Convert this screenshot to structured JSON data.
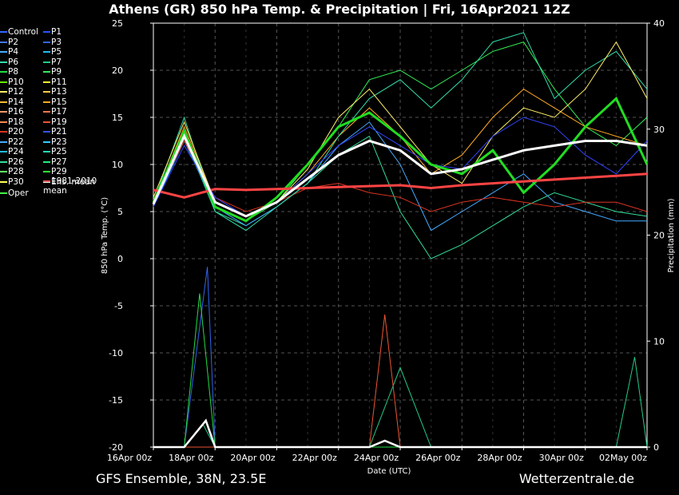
{
  "header": {
    "title": "Athens  (GR)  850 hPa Temp. & Precipitation | Fri, 16Apr2021 12Z"
  },
  "footer": {
    "left": "GFS Ensemble, 38N, 23.5E",
    "right": "Wetterzentrale.de"
  },
  "chart_data": {
    "type": "line",
    "ylabel": "850 hPa Temp. (°C)",
    "y2label": "Precipitation (mm)",
    "xlabel": "Date (UTC)",
    "ylim": [
      -20,
      25
    ],
    "y2lim": [
      0,
      40
    ],
    "yticks": [
      "25",
      "20",
      "15",
      "10",
      "5",
      "0",
      "-5",
      "-10",
      "-15",
      "-20"
    ],
    "y2ticks": [
      "40",
      "30",
      "20",
      "10",
      "0"
    ],
    "xticks": [
      "16Apr 00z",
      "18Apr 00z",
      "20Apr 00z",
      "22Apr 00z",
      "24Apr 00z",
      "26Apr 00z",
      "28Apr 00z",
      "30Apr 00z",
      "02May 00z"
    ],
    "grid": true,
    "legend": {
      "placement": "left",
      "entries": [
        {
          "name": "Control",
          "color": "#3366ff"
        },
        {
          "name": "P1",
          "color": "#2255ff"
        },
        {
          "name": "P2",
          "color": "#4477ff"
        },
        {
          "name": "P3",
          "color": "#3366ee"
        },
        {
          "name": "P4",
          "color": "#44aaff"
        },
        {
          "name": "P5",
          "color": "#22bbee"
        },
        {
          "name": "P6",
          "color": "#33ddaa"
        },
        {
          "name": "P7",
          "color": "#22cc88"
        },
        {
          "name": "P8",
          "color": "#22dd44"
        },
        {
          "name": "P9",
          "color": "#33ee55"
        },
        {
          "name": "P10",
          "color": "#66ee00"
        },
        {
          "name": "P11",
          "color": "#ffff33"
        },
        {
          "name": "P12",
          "color": "#ffee66"
        },
        {
          "name": "P13",
          "color": "#ffcc44"
        },
        {
          "name": "P14",
          "color": "#ffbb33"
        },
        {
          "name": "P15",
          "color": "#ffaa22"
        },
        {
          "name": "P16",
          "color": "#ff9966"
        },
        {
          "name": "P17",
          "color": "#ff7744"
        },
        {
          "name": "P18",
          "color": "#ff8855"
        },
        {
          "name": "P19",
          "color": "#ee5533"
        },
        {
          "name": "P20",
          "color": "#dd3322"
        },
        {
          "name": "P21",
          "color": "#3355ee"
        },
        {
          "name": "P22",
          "color": "#44aaff"
        },
        {
          "name": "P23",
          "color": "#33ccff"
        },
        {
          "name": "P24",
          "color": "#22bbdd"
        },
        {
          "name": "P25",
          "color": "#22ddbb"
        },
        {
          "name": "P26",
          "color": "#33dd99"
        },
        {
          "name": "P27",
          "color": "#22ee77"
        },
        {
          "name": "P28",
          "color": "#66ff66"
        },
        {
          "name": "P29",
          "color": "#33ff33"
        },
        {
          "name": "P30",
          "color": "#ffff55"
        },
        {
          "name": "Ens. mean",
          "color": "#ffffff"
        },
        {
          "name": "Oper",
          "color": "#44ff44"
        },
        {
          "name": "1981-2010 mean",
          "color": "#ff5555"
        }
      ]
    },
    "series": [
      {
        "name": "Ens. mean",
        "color": "#ffffff",
        "x": [
          0,
          1,
          2,
          3,
          4,
          5,
          6,
          7,
          8,
          9,
          10,
          11,
          12,
          13,
          14,
          15,
          16
        ],
        "values": [
          5.8,
          13.0,
          6.0,
          4.5,
          6.0,
          8.5,
          11.0,
          12.5,
          11.5,
          9.0,
          9.5,
          10.5,
          11.5,
          12.0,
          12.5,
          12.5,
          12.0
        ]
      },
      {
        "name": "1981-2010 mean",
        "color": "#ff4444",
        "x": [
          0,
          1,
          2,
          3,
          4,
          5,
          6,
          7,
          8,
          9,
          10,
          11,
          12,
          13,
          14,
          15,
          16
        ],
        "values": [
          7.3,
          6.5,
          7.4,
          7.3,
          7.4,
          7.5,
          7.6,
          7.7,
          7.8,
          7.5,
          7.8,
          8.0,
          8.2,
          8.4,
          8.6,
          8.8,
          9.0
        ]
      },
      {
        "name": "Oper",
        "color": "#22dd22",
        "x": [
          0,
          1,
          2,
          3,
          4,
          5,
          6,
          7,
          8,
          9,
          10,
          11,
          12,
          13,
          14,
          15,
          16
        ],
        "values": [
          6.0,
          13.5,
          5.5,
          4.0,
          6.5,
          10.0,
          14.0,
          15.5,
          13.0,
          10.0,
          9.0,
          11.5,
          7.0,
          10.0,
          14.0,
          17.0,
          10.0
        ]
      },
      {
        "name": "Control",
        "color": "#3344ff",
        "x": [
          0,
          1,
          2,
          3,
          4,
          5,
          6,
          7,
          8,
          9,
          10,
          11,
          12,
          13,
          14,
          15,
          16
        ],
        "values": [
          5.5,
          12.0,
          6.5,
          4.5,
          6.0,
          9.0,
          12.0,
          14.0,
          12.0,
          10.0,
          9.5,
          13.0,
          15.0,
          14.0,
          11.0,
          9.0,
          12.5
        ]
      },
      {
        "name": "P12",
        "color": "#ffee66",
        "x": [
          0,
          1,
          2,
          3,
          4,
          5,
          6,
          7,
          8,
          9,
          10,
          11,
          12,
          13,
          14,
          15,
          16
        ],
        "values": [
          6.5,
          14.5,
          6.0,
          4.5,
          6.0,
          9.5,
          15.0,
          18.0,
          14.0,
          10.0,
          8.0,
          13.0,
          16.0,
          15.0,
          18.0,
          23.0,
          17.0
        ]
      },
      {
        "name": "P6",
        "color": "#33ddaa",
        "x": [
          0,
          1,
          2,
          3,
          4,
          5,
          6,
          7,
          8,
          9,
          10,
          11,
          12,
          13,
          14,
          15,
          16
        ],
        "values": [
          6.0,
          15.0,
          5.0,
          3.0,
          5.5,
          8.0,
          13.0,
          17.0,
          19.0,
          16.0,
          19.0,
          23.0,
          24.0,
          17.0,
          20.0,
          22.0,
          18.0
        ]
      },
      {
        "name": "P20",
        "color": "#dd3322",
        "x": [
          0,
          1,
          2,
          3,
          4,
          5,
          6,
          7,
          8,
          9,
          10,
          11,
          12,
          13,
          14,
          15,
          16
        ],
        "values": [
          6.0,
          12.5,
          6.5,
          5.0,
          6.0,
          7.5,
          8.0,
          7.0,
          6.5,
          5.0,
          6.0,
          6.5,
          6.0,
          5.5,
          6.0,
          6.0,
          5.0
        ]
      },
      {
        "name": "P4",
        "color": "#44aaff",
        "x": [
          0,
          1,
          2,
          3,
          4,
          5,
          6,
          7,
          8,
          9,
          10,
          11,
          12,
          13,
          14,
          15,
          16
        ],
        "values": [
          5.5,
          12.5,
          5.5,
          3.5,
          5.5,
          8.0,
          12.0,
          14.5,
          10.0,
          3.0,
          5.0,
          7.0,
          9.0,
          6.0,
          5.0,
          4.0,
          4.0
        ]
      },
      {
        "name": "P26",
        "color": "#33dd99",
        "x": [
          0,
          1,
          2,
          3,
          4,
          5,
          6,
          7,
          8,
          9,
          10,
          11,
          12,
          13,
          14,
          15,
          16
        ],
        "values": [
          6.0,
          13.0,
          5.0,
          3.5,
          5.5,
          8.0,
          11.0,
          13.0,
          5.0,
          0.0,
          1.5,
          3.5,
          5.5,
          7.0,
          6.0,
          5.0,
          4.5
        ]
      },
      {
        "name": "P15",
        "color": "#ffaa22",
        "x": [
          0,
          1,
          2,
          3,
          4,
          5,
          6,
          7,
          8,
          9,
          10,
          11,
          12,
          13,
          14,
          15,
          16
        ],
        "values": [
          6.0,
          14.0,
          6.0,
          4.5,
          6.0,
          9.0,
          13.0,
          16.0,
          13.0,
          9.0,
          11.0,
          15.0,
          18.0,
          16.0,
          14.0,
          13.0,
          12.0
        ]
      },
      {
        "name": "P9",
        "color": "#33ee55",
        "x": [
          0,
          1,
          2,
          3,
          4,
          5,
          6,
          7,
          8,
          9,
          10,
          11,
          12,
          13,
          14,
          15,
          16
        ],
        "values": [
          6.0,
          13.0,
          5.5,
          4.0,
          6.0,
          10.0,
          14.0,
          19.0,
          20.0,
          18.0,
          20.0,
          22.0,
          23.0,
          18.0,
          14.0,
          12.0,
          15.0
        ]
      }
    ],
    "precip_series": [
      {
        "name": "P7",
        "color": "#22cc88",
        "x": [
          0,
          1,
          1.6,
          2,
          4,
          5,
          6,
          7,
          8,
          9,
          10,
          11,
          12,
          13,
          14,
          15,
          15.6,
          16
        ],
        "values": [
          0,
          0,
          2.2,
          0,
          0,
          0,
          0,
          0,
          7.5,
          0,
          0,
          0,
          0,
          0,
          0,
          0,
          8.5,
          0
        ]
      },
      {
        "name": "P3",
        "color": "#3366ee",
        "x": [
          0,
          1,
          1.75,
          2,
          4,
          5,
          6,
          7,
          8,
          9,
          10,
          11,
          12,
          13,
          14,
          15,
          16
        ],
        "values": [
          0,
          0,
          17.0,
          0,
          0,
          0,
          0,
          0,
          0,
          0,
          0,
          0,
          0,
          0,
          0,
          0,
          0
        ]
      },
      {
        "name": "P19",
        "color": "#ee5533",
        "x": [
          0,
          1,
          2,
          4,
          5,
          6,
          7,
          7.5,
          8,
          9,
          10,
          11,
          12,
          13,
          14,
          15,
          16
        ],
        "values": [
          0,
          0,
          0,
          0,
          0,
          0,
          0,
          12.5,
          0,
          0,
          0,
          0,
          0,
          0,
          0,
          0,
          0
        ]
      },
      {
        "name": "P8",
        "color": "#22dd44",
        "x": [
          0,
          1,
          1.5,
          2,
          4,
          5,
          6,
          7,
          8,
          9,
          10,
          11,
          12,
          13,
          14,
          15,
          16
        ],
        "values": [
          0,
          0,
          14.5,
          0,
          0,
          0,
          0,
          0,
          0,
          0,
          0,
          0,
          0,
          0,
          0,
          0,
          0
        ]
      },
      {
        "name": "Ens. mean",
        "color": "#ffffff",
        "x": [
          0,
          1,
          1.7,
          2,
          4,
          5,
          6,
          7,
          7.5,
          8,
          9,
          10,
          11,
          12,
          13,
          14,
          15,
          16
        ],
        "values": [
          0,
          0,
          2.5,
          0,
          0,
          0,
          0,
          0,
          0.6,
          0,
          0,
          0,
          0,
          0,
          0,
          0,
          0,
          0
        ]
      }
    ]
  }
}
